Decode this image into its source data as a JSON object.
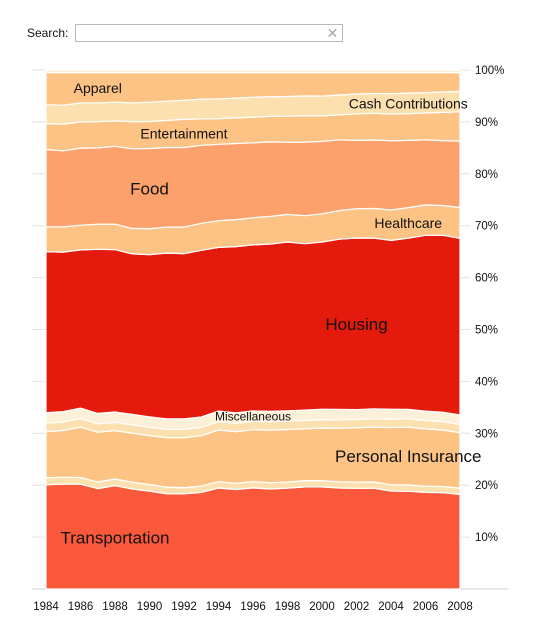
{
  "search": {
    "label": "Search:",
    "value": "",
    "placeholder": "",
    "clear_icon": "close-icon"
  },
  "chart_data": {
    "type": "area",
    "stacked": true,
    "normalized": true,
    "x": [
      1984,
      1985,
      1986,
      1987,
      1988,
      1989,
      1990,
      1991,
      1992,
      1993,
      1994,
      1995,
      1996,
      1997,
      1998,
      1999,
      2000,
      2001,
      2002,
      2003,
      2004,
      2005,
      2006,
      2007,
      2008
    ],
    "xticks": [
      "1984",
      "1986",
      "1988",
      "1990",
      "1992",
      "1994",
      "1996",
      "1998",
      "2000",
      "2002",
      "2004",
      "2006",
      "2008"
    ],
    "yticks": [
      "10%",
      "20%",
      "30%",
      "40%",
      "50%",
      "60%",
      "70%",
      "80%",
      "90%",
      "100%"
    ],
    "ylim": [
      0,
      100
    ],
    "grid": true,
    "series": [
      {
        "name": "Transportation",
        "color": "#f9593a",
        "values": [
          19.8,
          20.0,
          20.4,
          19.2,
          19.9,
          19.2,
          18.8,
          18.3,
          18.3,
          18.6,
          19.3,
          19.1,
          19.3,
          19.2,
          19.4,
          19.7,
          19.6,
          19.4,
          19.3,
          19.3,
          18.7,
          18.6,
          18.4,
          18.4,
          18.1
        ]
      },
      {
        "name": "",
        "color": "#fde0b0",
        "values": [
          1.3,
          1.3,
          1.3,
          1.3,
          1.3,
          1.3,
          1.3,
          1.3,
          1.2,
          1.2,
          1.2,
          1.2,
          1.2,
          1.2,
          1.2,
          1.2,
          1.2,
          1.2,
          1.2,
          1.2,
          1.2,
          1.2,
          1.2,
          1.2,
          1.2
        ]
      },
      {
        "name": "Personal Insurance",
        "color": "#fcc385",
        "values": [
          8.8,
          8.9,
          9.8,
          9.5,
          9.3,
          9.4,
          9.4,
          9.5,
          9.6,
          9.7,
          9.9,
          9.9,
          9.9,
          10.1,
          10.1,
          10.0,
          10.1,
          10.3,
          10.4,
          10.5,
          10.9,
          11.0,
          10.9,
          10.8,
          10.6
        ]
      },
      {
        "name": "",
        "color": "#fde0b0",
        "values": [
          1.6,
          1.6,
          1.7,
          1.6,
          1.6,
          1.6,
          1.6,
          1.6,
          1.6,
          1.6,
          1.6,
          1.6,
          1.6,
          1.6,
          1.6,
          1.6,
          1.6,
          1.6,
          1.6,
          1.6,
          1.6,
          1.6,
          1.6,
          1.6,
          1.6
        ]
      },
      {
        "name": "Miscellaneous",
        "color": "#fdf0d8",
        "values": [
          2.0,
          2.0,
          2.0,
          2.0,
          2.0,
          2.0,
          2.0,
          2.0,
          2.0,
          2.0,
          2.0,
          2.0,
          2.0,
          2.0,
          2.0,
          2.0,
          2.0,
          2.0,
          1.9,
          1.9,
          1.9,
          1.8,
          1.8,
          1.8,
          1.8
        ]
      },
      {
        "name": "Housing",
        "color": "#e41a0c",
        "values": [
          30.6,
          30.4,
          30.8,
          31.4,
          31.3,
          30.8,
          31.2,
          31.9,
          31.8,
          32.1,
          31.3,
          31.9,
          31.7,
          32.1,
          32.5,
          32.1,
          32.1,
          32.7,
          32.9,
          32.7,
          32.2,
          32.6,
          33.5,
          33.8,
          33.8
        ]
      },
      {
        "name": "Healthcare",
        "color": "#fcc385",
        "values": [
          4.7,
          4.8,
          4.8,
          4.8,
          4.9,
          4.9,
          5.0,
          5.0,
          5.1,
          5.2,
          5.1,
          5.2,
          5.2,
          5.3,
          5.3,
          5.4,
          5.4,
          5.5,
          5.6,
          5.7,
          5.8,
          5.8,
          5.8,
          5.7,
          5.9
        ]
      },
      {
        "name": "Food",
        "color": "#fca16c",
        "values": [
          14.7,
          14.5,
          15.0,
          14.6,
          15.0,
          15.3,
          15.4,
          15.3,
          15.3,
          15.0,
          14.6,
          14.6,
          14.3,
          14.3,
          13.9,
          14.2,
          13.9,
          13.6,
          13.1,
          13.1,
          13.2,
          12.8,
          12.4,
          12.4,
          12.7
        ]
      },
      {
        "name": "Entertainment",
        "color": "#fcc385",
        "values": [
          4.9,
          5.1,
          5.1,
          5.0,
          4.9,
          5.2,
          5.2,
          5.2,
          5.4,
          5.1,
          4.9,
          4.9,
          4.9,
          4.9,
          5.0,
          5.1,
          4.9,
          4.8,
          5.1,
          5.1,
          5.1,
          5.1,
          5.1,
          5.4,
          5.6
        ]
      },
      {
        "name": "Cash Contributions",
        "color": "#fde0b0",
        "values": [
          3.6,
          3.6,
          3.7,
          3.6,
          3.6,
          3.6,
          3.7,
          3.7,
          3.7,
          3.8,
          3.8,
          3.8,
          3.8,
          3.8,
          3.8,
          3.8,
          3.8,
          3.8,
          3.8,
          3.8,
          3.9,
          3.9,
          3.9,
          3.9,
          3.9
        ]
      },
      {
        "name": "Apparel",
        "color": "#fcc385",
        "values": [
          6.1,
          6.2,
          5.9,
          5.8,
          5.7,
          5.8,
          5.7,
          5.5,
          5.3,
          5.1,
          5.0,
          4.9,
          4.7,
          4.6,
          4.6,
          4.5,
          4.5,
          4.3,
          4.1,
          4.0,
          4.0,
          3.9,
          3.8,
          3.7,
          3.6
        ]
      },
      {
        "name": "",
        "color": "#fdf0d8",
        "values": [
          0.5,
          0.5,
          0.5,
          0.5,
          0.5,
          0.5,
          0.5,
          0.5,
          0.5,
          0.5,
          0.5,
          0.5,
          0.5,
          0.5,
          0.5,
          0.5,
          0.5,
          0.5,
          0.5,
          0.5,
          0.5,
          0.5,
          0.5,
          0.5,
          0.5
        ]
      }
    ]
  }
}
